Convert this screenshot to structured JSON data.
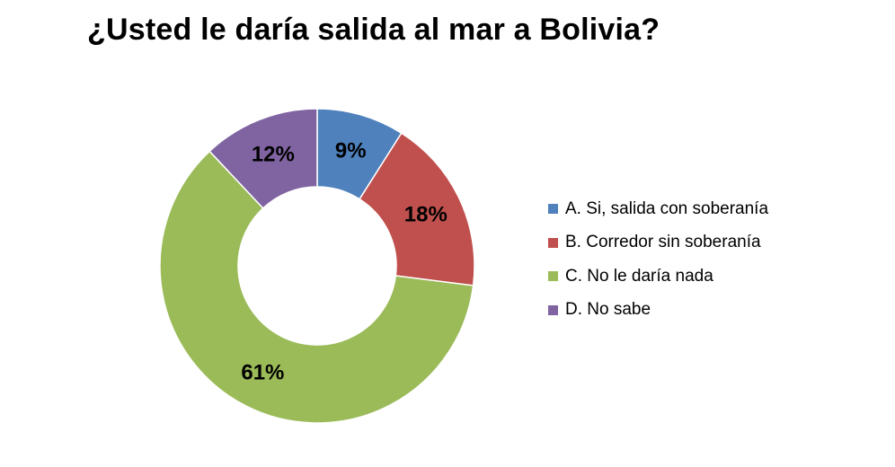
{
  "chart_data": {
    "type": "pie",
    "subtype": "donut",
    "title": "¿Usted le daría salida al mar a Bolivia?",
    "unit": "%",
    "slices": [
      {
        "label": "A. Si, salida con soberanía",
        "value": 9,
        "display": "9%",
        "color": "#4F81BD"
      },
      {
        "label": "B. Corredor sin soberanía",
        "value": 18,
        "display": "18%",
        "color": "#C0504D"
      },
      {
        "label": "C. No le daría nada",
        "value": 61,
        "display": "61%",
        "color": "#9BBB59"
      },
      {
        "label": "D. No sabe",
        "value": 12,
        "display": "12%",
        "color": "#8064A2"
      }
    ],
    "legend_position": "right"
  }
}
